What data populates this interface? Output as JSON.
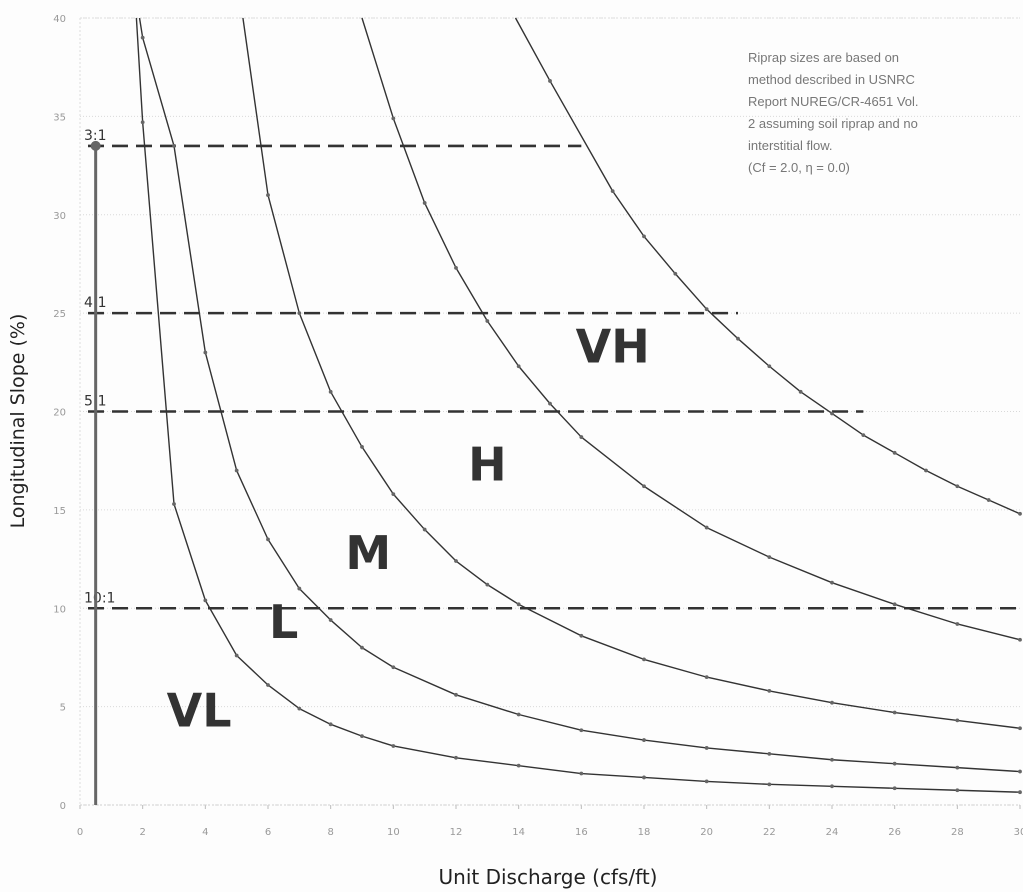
{
  "chart_data": {
    "type": "line",
    "title": "",
    "xlabel": "Unit Discharge (cfs/ft)",
    "ylabel": "Longitudinal  Slope (%)",
    "xlim": [
      0,
      30
    ],
    "ylim": [
      0,
      40
    ],
    "x_ticks": [
      "0",
      "2",
      "4",
      "6",
      "8",
      "10",
      "12",
      "14",
      "16",
      "18",
      "20",
      "22",
      "24",
      "26",
      "28",
      "30"
    ],
    "y_ticks": [
      "0",
      "5",
      "10",
      "15",
      "20",
      "25",
      "30",
      "35",
      "40"
    ],
    "grid": true,
    "legend": "none",
    "series": [
      {
        "points": [
          [
            1.8,
            40
          ],
          [
            2.0,
            34.7
          ],
          [
            3.0,
            15.3
          ],
          [
            4.0,
            10.4
          ],
          [
            5.0,
            7.6
          ],
          [
            6.0,
            6.1
          ],
          [
            7.0,
            4.9
          ],
          [
            8.0,
            4.1
          ],
          [
            9.0,
            3.5
          ],
          [
            10.0,
            3.0
          ],
          [
            12.0,
            2.4
          ],
          [
            14.0,
            2.0
          ],
          [
            16.0,
            1.6
          ],
          [
            18.0,
            1.4
          ],
          [
            20.0,
            1.2
          ],
          [
            22.0,
            1.05
          ],
          [
            24.0,
            0.95
          ],
          [
            26.0,
            0.85
          ],
          [
            28.0,
            0.75
          ],
          [
            30.0,
            0.65
          ]
        ]
      },
      {
        "points": [
          [
            1.9,
            40
          ],
          [
            2.0,
            39.0
          ],
          [
            3.0,
            33.5
          ],
          [
            4.0,
            23.0
          ],
          [
            5.0,
            17.0
          ],
          [
            6.0,
            13.5
          ],
          [
            7.0,
            11.0
          ],
          [
            8.0,
            9.4
          ],
          [
            9.0,
            8.0
          ],
          [
            10.0,
            7.0
          ],
          [
            12.0,
            5.6
          ],
          [
            14.0,
            4.6
          ],
          [
            16.0,
            3.8
          ],
          [
            18.0,
            3.3
          ],
          [
            20.0,
            2.9
          ],
          [
            22.0,
            2.6
          ],
          [
            24.0,
            2.3
          ],
          [
            26.0,
            2.1
          ],
          [
            28.0,
            1.9
          ],
          [
            30.0,
            1.7
          ]
        ]
      },
      {
        "points": [
          [
            5.2,
            40
          ],
          [
            6.0,
            31.0
          ],
          [
            7.0,
            25.0
          ],
          [
            8.0,
            21.0
          ],
          [
            9.0,
            18.2
          ],
          [
            10.0,
            15.8
          ],
          [
            11.0,
            14.0
          ],
          [
            12.0,
            12.4
          ],
          [
            13.0,
            11.2
          ],
          [
            14.0,
            10.2
          ],
          [
            16.0,
            8.6
          ],
          [
            18.0,
            7.4
          ],
          [
            20.0,
            6.5
          ],
          [
            22.0,
            5.8
          ],
          [
            24.0,
            5.2
          ],
          [
            26.0,
            4.7
          ],
          [
            28.0,
            4.3
          ],
          [
            30.0,
            3.9
          ]
        ]
      },
      {
        "points": [
          [
            9.0,
            40
          ],
          [
            10.0,
            34.9
          ],
          [
            11.0,
            30.6
          ],
          [
            12.0,
            27.3
          ],
          [
            13.0,
            24.6
          ],
          [
            14.0,
            22.3
          ],
          [
            15.0,
            20.4
          ],
          [
            16.0,
            18.7
          ],
          [
            18.0,
            16.2
          ],
          [
            20.0,
            14.1
          ],
          [
            22.0,
            12.6
          ],
          [
            24.0,
            11.3
          ],
          [
            26.0,
            10.2
          ],
          [
            28.0,
            9.2
          ],
          [
            30.0,
            8.4
          ]
        ]
      },
      {
        "points": [
          [
            13.9,
            40
          ],
          [
            15.0,
            36.8
          ],
          [
            17.0,
            31.2
          ],
          [
            18.0,
            28.9
          ],
          [
            19.0,
            27.0
          ],
          [
            20.0,
            25.2
          ],
          [
            21.0,
            23.7
          ],
          [
            22.0,
            22.3
          ],
          [
            23.0,
            21.0
          ],
          [
            24.0,
            19.9
          ],
          [
            25.0,
            18.8
          ],
          [
            26.0,
            17.9
          ],
          [
            27.0,
            17.0
          ],
          [
            28.0,
            16.2
          ],
          [
            29.0,
            15.5
          ],
          [
            30.0,
            14.8
          ]
        ]
      }
    ],
    "reference_lines": [
      {
        "label": "3:1",
        "y": 33.5,
        "x_end": 16
      },
      {
        "label": "4:1",
        "y": 25.0,
        "x_end": 21
      },
      {
        "label": "5:1",
        "y": 20.0,
        "x_end": 25
      },
      {
        "label": "10:1",
        "y": 10.0,
        "x_end": 30
      }
    ],
    "zones": [
      {
        "label": "VL",
        "x": 3.8,
        "y": 4.0
      },
      {
        "label": "L",
        "x": 6.5,
        "y": 8.5
      },
      {
        "label": "M",
        "x": 9.2,
        "y": 12.0
      },
      {
        "label": "H",
        "x": 13.0,
        "y": 16.5
      },
      {
        "label": "VH",
        "x": 17.0,
        "y": 22.5
      }
    ],
    "vertical_marker": {
      "x": 0.5,
      "y_top": 33.5
    },
    "annotation": [
      "Riprap sizes are based on",
      "method described in USNRC",
      "Report NUREG/CR-4651 Vol.",
      "2 assuming soil riprap and no",
      "interstitial flow.",
      "(Cf = 2.0, η = 0.0)"
    ]
  }
}
